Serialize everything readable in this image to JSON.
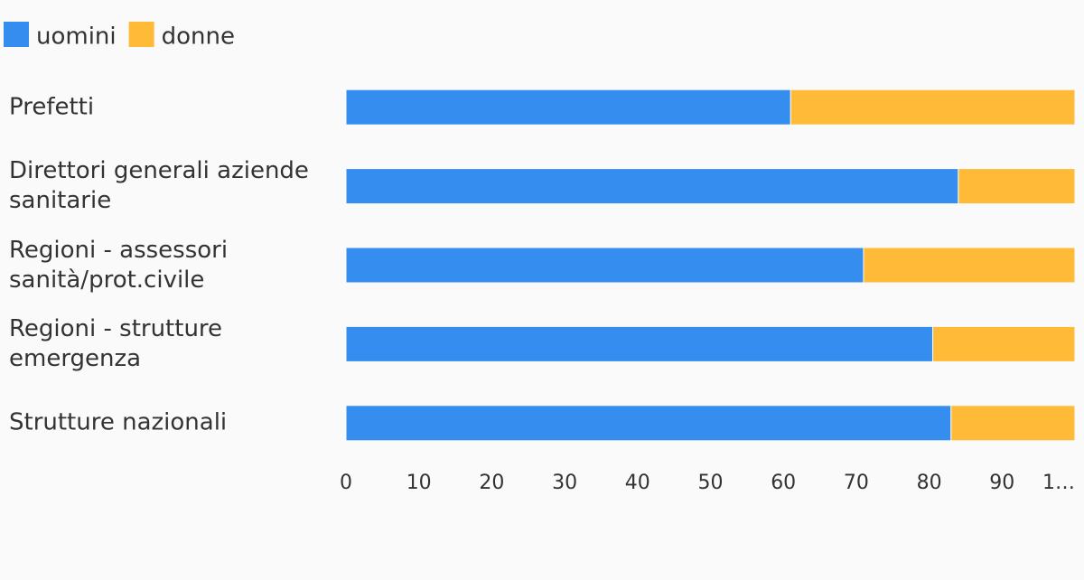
{
  "chart_data": {
    "type": "stacked_barh",
    "categories": [
      "Prefetti",
      "Direttori generali aziende sanitarie",
      "Regioni - assessori sanità/prot.civile",
      "Regioni - strutture emergenza",
      "Strutture nazionali"
    ],
    "series": [
      {
        "name": "uomini",
        "color": "#348def",
        "values": [
          61,
          84,
          71,
          80.5,
          83
        ]
      },
      {
        "name": "donne",
        "color": "#ffba38",
        "values": [
          39,
          16,
          29,
          19.5,
          17
        ]
      }
    ],
    "xlim": [
      0,
      100
    ],
    "xticks": [
      0,
      10,
      20,
      30,
      40,
      50,
      60,
      70,
      80,
      90,
      {
        "value": 100,
        "label": "1…"
      }
    ],
    "legend": "top-left"
  }
}
